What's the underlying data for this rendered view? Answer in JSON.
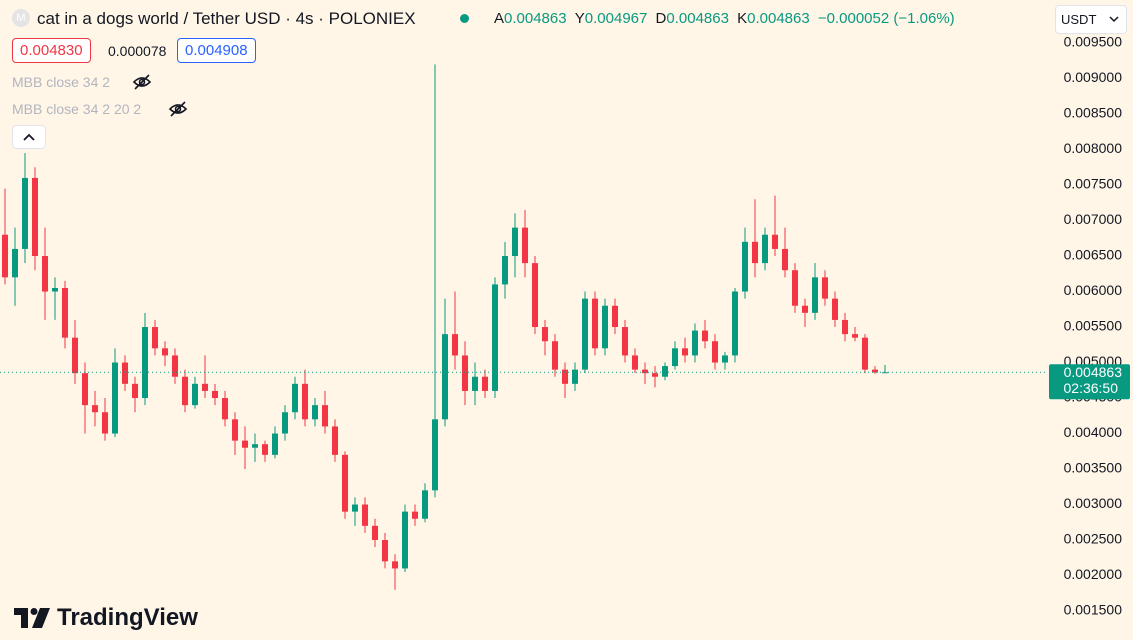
{
  "chart_data": {
    "type": "candlestick",
    "title": "cat in a dogs world / Tether USD · 4s · POLONIEX",
    "legend_labels": [
      "A",
      "Y",
      "D",
      "K"
    ],
    "legend_values": [
      "0.004863",
      "0.004967",
      "0.004863",
      "0.004863"
    ],
    "change": "−0.000052 (−1.06%)",
    "sell_price": "0.004830",
    "spread": "0.000078",
    "buy_price": "0.004908",
    "indicators": [
      "MBB close 34 2",
      "MBB close 34 2 20 2"
    ],
    "currency": "USDT",
    "last_price": 0.004863,
    "countdown": "02:36:50",
    "brand": "TradingView",
    "up_color": "#089981",
    "down_color": "#f23645",
    "ylim": [
      0.001092,
      0.010106
    ],
    "yticks": [
      {
        "value": 0.0095,
        "label": "0.009500"
      },
      {
        "value": 0.009,
        "label": "0.009000"
      },
      {
        "value": 0.0085,
        "label": "0.008500"
      },
      {
        "value": 0.008,
        "label": "0.008000"
      },
      {
        "value": 0.0075,
        "label": "0.007500"
      },
      {
        "value": 0.007,
        "label": "0.007000"
      },
      {
        "value": 0.0065,
        "label": "0.006500"
      },
      {
        "value": 0.006,
        "label": "0.006000"
      },
      {
        "value": 0.0055,
        "label": "0.005500"
      },
      {
        "value": 0.005,
        "label": "0.005000"
      },
      {
        "value": 0.0045,
        "label": "0.004500"
      },
      {
        "value": 0.004,
        "label": "0.004000"
      },
      {
        "value": 0.0035,
        "label": "0.003500"
      },
      {
        "value": 0.003,
        "label": "0.003000"
      },
      {
        "value": 0.0025,
        "label": "0.002500"
      },
      {
        "value": 0.002,
        "label": "0.002000"
      },
      {
        "value": 0.0015,
        "label": "0.001500"
      }
    ],
    "open": [
      0.0068,
      0.0062,
      0.0066,
      0.0076,
      0.0065,
      0.006,
      0.00605,
      0.00535,
      0.00485,
      0.0044,
      0.0043,
      0.004,
      0.005,
      0.0047,
      0.0045,
      0.0055,
      0.0052,
      0.0051,
      0.0048,
      0.0044,
      0.0047,
      0.0046,
      0.0045,
      0.0042,
      0.0039,
      0.0038,
      0.00385,
      0.0037,
      0.004,
      0.0043,
      0.0047,
      0.0042,
      0.0044,
      0.0041,
      0.0037,
      0.0029,
      0.003,
      0.0027,
      0.0025,
      0.0022,
      0.0021,
      0.0029,
      0.0028,
      0.0032,
      0.0042,
      0.0054,
      0.0051,
      0.0046,
      0.0048,
      0.0046,
      0.0061,
      0.0065,
      0.0069,
      0.0064,
      0.0055,
      0.0053,
      0.0049,
      0.0047,
      0.0049,
      0.0059,
      0.0052,
      0.0058,
      0.0055,
      0.0051,
      0.0049,
      0.00485,
      0.0048,
      0.00495,
      0.0052,
      0.0051,
      0.00545,
      0.0053,
      0.005,
      0.0051,
      0.006,
      0.0067,
      0.0064,
      0.0068,
      0.0066,
      0.0063,
      0.0058,
      0.0057,
      0.0062,
      0.0059,
      0.0056,
      0.0054,
      0.00535,
      0.0049,
      0.004863
    ],
    "high": [
      0.00745,
      0.0069,
      0.00795,
      0.00775,
      0.0069,
      0.0062,
      0.00615,
      0.0056,
      0.005,
      0.0046,
      0.0045,
      0.0052,
      0.0051,
      0.0048,
      0.0057,
      0.0056,
      0.0053,
      0.0052,
      0.0049,
      0.0048,
      0.0051,
      0.0047,
      0.0046,
      0.0043,
      0.0041,
      0.004,
      0.0039,
      0.0041,
      0.0044,
      0.0048,
      0.0049,
      0.0045,
      0.0046,
      0.0042,
      0.00375,
      0.0031,
      0.0031,
      0.0028,
      0.0026,
      0.0023,
      0.003,
      0.003,
      0.0033,
      0.0092,
      0.0059,
      0.006,
      0.0053,
      0.005,
      0.0049,
      0.0062,
      0.0067,
      0.0071,
      0.00715,
      0.0065,
      0.0056,
      0.0054,
      0.005,
      0.005,
      0.006,
      0.006,
      0.0059,
      0.0059,
      0.0056,
      0.0052,
      0.005,
      0.00495,
      0.005,
      0.0053,
      0.00535,
      0.00555,
      0.0056,
      0.0054,
      0.00515,
      0.00605,
      0.0069,
      0.0073,
      0.0069,
      0.00735,
      0.0069,
      0.0064,
      0.0059,
      0.0064,
      0.0063,
      0.006,
      0.0057,
      0.0055,
      0.0054,
      0.00495,
      0.004967
    ],
    "low": [
      0.0061,
      0.0058,
      0.0064,
      0.0063,
      0.0056,
      0.0056,
      0.0052,
      0.0047,
      0.004,
      0.0041,
      0.0039,
      0.00395,
      0.0046,
      0.0043,
      0.0044,
      0.0051,
      0.00495,
      0.0047,
      0.0043,
      0.00435,
      0.0045,
      0.0044,
      0.0041,
      0.0037,
      0.0035,
      0.0036,
      0.0036,
      0.00365,
      0.0039,
      0.0042,
      0.0041,
      0.0041,
      0.004,
      0.0036,
      0.0028,
      0.0027,
      0.0026,
      0.0024,
      0.0021,
      0.0018,
      0.00205,
      0.0027,
      0.00275,
      0.0031,
      0.0041,
      0.0049,
      0.0044,
      0.0044,
      0.0045,
      0.0045,
      0.0059,
      0.0062,
      0.0062,
      0.0054,
      0.0051,
      0.0048,
      0.0045,
      0.0046,
      0.00485,
      0.0051,
      0.0051,
      0.0054,
      0.005,
      0.00485,
      0.0047,
      0.00465,
      0.00475,
      0.0049,
      0.005,
      0.005,
      0.0052,
      0.0049,
      0.0049,
      0.005,
      0.0059,
      0.0062,
      0.0063,
      0.0065,
      0.0062,
      0.0057,
      0.0055,
      0.0056,
      0.0058,
      0.0055,
      0.0053,
      0.0053,
      0.00485,
      0.00484,
      0.004863
    ],
    "close": [
      0.0062,
      0.0066,
      0.0076,
      0.0065,
      0.006,
      0.00605,
      0.00535,
      0.00485,
      0.0044,
      0.0043,
      0.004,
      0.005,
      0.0047,
      0.0045,
      0.0055,
      0.0052,
      0.0051,
      0.0048,
      0.0044,
      0.0047,
      0.0046,
      0.0045,
      0.0042,
      0.0039,
      0.0038,
      0.00385,
      0.0037,
      0.004,
      0.0043,
      0.0047,
      0.0042,
      0.0044,
      0.0041,
      0.0037,
      0.0029,
      0.003,
      0.0027,
      0.0025,
      0.0022,
      0.0021,
      0.0029,
      0.0028,
      0.0032,
      0.0042,
      0.0054,
      0.0051,
      0.0046,
      0.0048,
      0.0046,
      0.0061,
      0.0065,
      0.0069,
      0.0064,
      0.0055,
      0.0053,
      0.0049,
      0.0047,
      0.0049,
      0.0059,
      0.0052,
      0.0058,
      0.0055,
      0.0051,
      0.0049,
      0.00485,
      0.0048,
      0.00495,
      0.0052,
      0.0051,
      0.00545,
      0.0053,
      0.005,
      0.0051,
      0.006,
      0.0067,
      0.0064,
      0.0068,
      0.0066,
      0.0063,
      0.0058,
      0.0057,
      0.0062,
      0.0059,
      0.0056,
      0.0054,
      0.00535,
      0.0049,
      0.00486,
      0.004863
    ]
  }
}
